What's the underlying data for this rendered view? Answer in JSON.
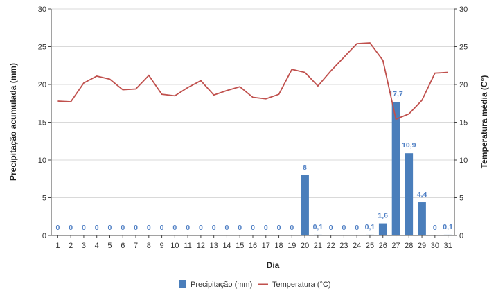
{
  "chart_data": {
    "type": "bar+line",
    "categories": [
      "1",
      "2",
      "3",
      "4",
      "5",
      "6",
      "7",
      "8",
      "9",
      "10",
      "11",
      "12",
      "13",
      "14",
      "15",
      "16",
      "17",
      "18",
      "19",
      "20",
      "21",
      "22",
      "23",
      "24",
      "25",
      "26",
      "27",
      "28",
      "29",
      "30",
      "31"
    ],
    "series": [
      {
        "name": "Precipitação (mm)",
        "type": "bar",
        "axis": "left",
        "color": "#4a7ebb",
        "values": [
          0,
          0,
          0,
          0,
          0,
          0,
          0,
          0,
          0,
          0,
          0,
          0,
          0,
          0,
          0,
          0,
          0,
          0,
          0,
          8,
          0.1,
          0,
          0,
          0,
          0.1,
          1.6,
          17.7,
          10.9,
          4.4,
          0,
          0.1
        ],
        "data_labels": [
          "0",
          "0",
          "0",
          "0",
          "0",
          "0",
          "0",
          "0",
          "0",
          "0",
          "0",
          "0",
          "0",
          "0",
          "0",
          "0",
          "0",
          "0",
          "0",
          "8",
          "0,1",
          "0",
          "0",
          "0",
          "0,1",
          "1,6",
          "17,7",
          "10,9",
          "4,4",
          "0",
          "0,1"
        ]
      },
      {
        "name": "Temperatura (°C)",
        "type": "line",
        "axis": "right",
        "color": "#c0504d",
        "values": [
          17.8,
          17.7,
          20.2,
          21.1,
          20.7,
          19.3,
          19.4,
          21.2,
          18.7,
          18.5,
          19.6,
          20.5,
          18.6,
          19.2,
          19.7,
          18.3,
          18.1,
          18.7,
          22.0,
          21.6,
          19.8,
          21.8,
          23.6,
          25.4,
          25.5,
          23.2,
          15.4,
          16.1,
          17.9,
          21.5,
          21.6
        ]
      }
    ],
    "xlabel": "Dia",
    "ylabel": "Precipitação acumulada (mm)",
    "y2label": "Temperatura média (C°)",
    "ylim": [
      0,
      30
    ],
    "y2lim": [
      0,
      30
    ],
    "yticks": [
      "0",
      "5",
      "10",
      "15",
      "20",
      "25",
      "30"
    ],
    "y2ticks": [
      "0",
      "5",
      "10",
      "15",
      "20",
      "25",
      "30"
    ],
    "grid": "horizontal",
    "legend": "bottom-center"
  }
}
